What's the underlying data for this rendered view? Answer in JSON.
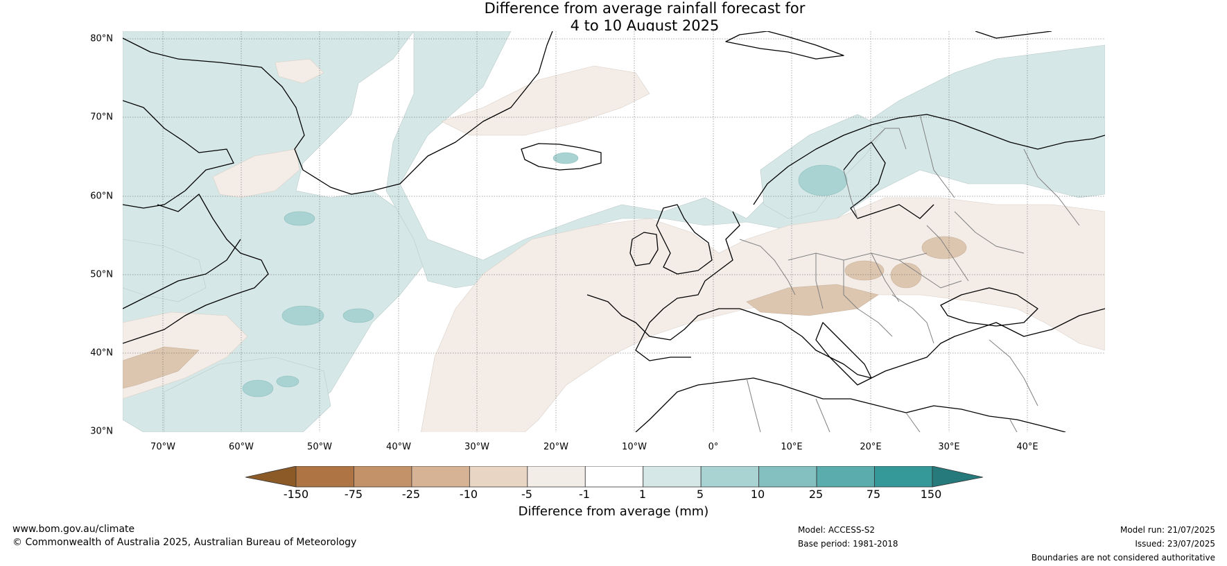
{
  "title_line1": "Difference from average rainfall forecast for",
  "title_line2": "4 to 10 August 2025",
  "map": {
    "lat_labels": [
      "80°N",
      "70°N",
      "60°N",
      "50°N",
      "40°N",
      "30°N"
    ],
    "lon_labels": [
      "70°W",
      "60°W",
      "50°W",
      "40°W",
      "30°W",
      "20°W",
      "10°W",
      "0°",
      "10°E",
      "20°E",
      "30°E",
      "40°E"
    ],
    "colors": {
      "wet_light": "#d5e8e7",
      "wet_mid": "#a8d3d2",
      "dry_light": "#f3ece7",
      "dry_mid": "#ddc6b0",
      "coast": "#000000",
      "border": "#808080",
      "grid": "#555555"
    }
  },
  "colorbar": {
    "ticks": [
      "-150",
      "-75",
      "-25",
      "-10",
      "-5",
      "-1",
      "1",
      "5",
      "10",
      "25",
      "75",
      "150"
    ],
    "colors": [
      "#8c5a26",
      "#ae7443",
      "#c39268",
      "#d6b395",
      "#e8d5c4",
      "#f3ede8",
      "#ffffff",
      "#d5e8e7",
      "#a8d3d2",
      "#83c0bf",
      "#5aacad",
      "#35999a",
      "#267a7b"
    ],
    "label": "Difference from average (mm)"
  },
  "footer": {
    "website": "www.bom.gov.au/climate",
    "copyright": "© Commonwealth of Australia 2025, Australian Bureau of Meteorology",
    "model": "Model: ACCESS-S2",
    "base_period": "Base period: 1981-2018",
    "model_run": "Model run: 21/07/2025",
    "issued": "Issued: 23/07/2025",
    "disclaimer": "Boundaries are not considered authoritative"
  }
}
